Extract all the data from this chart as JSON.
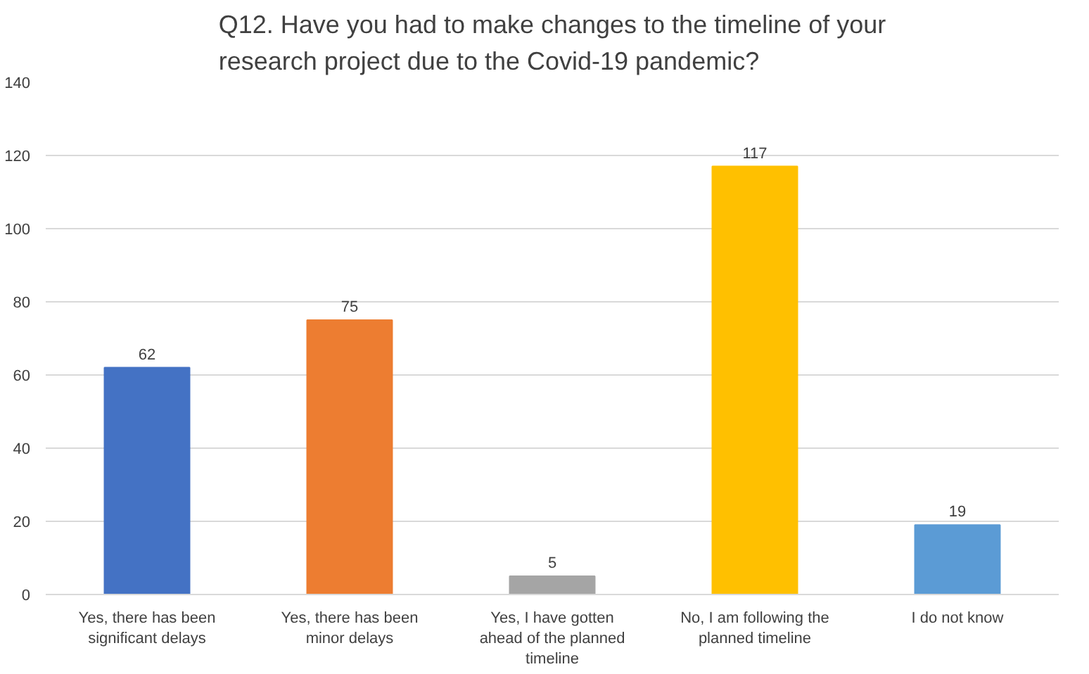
{
  "chart_data": {
    "type": "bar",
    "title": "Q12. Have you had to make changes to the timeline of your research project due to the Covid-19 pandemic?",
    "categories": [
      "Yes, there has been significant delays",
      "Yes, there has been minor delays",
      "Yes, I have gotten ahead of the planned timeline",
      "No, I am following the planned timeline",
      "I do not know"
    ],
    "values": [
      62,
      75,
      5,
      117,
      19
    ],
    "colors": [
      "#4472c4",
      "#ed7d31",
      "#a5a5a5",
      "#ffc000",
      "#5b9bd5"
    ],
    "ylim": [
      0,
      140
    ],
    "yticks": [
      0,
      20,
      40,
      60,
      80,
      100,
      120,
      140
    ],
    "grid": "y",
    "data_labels": true
  }
}
